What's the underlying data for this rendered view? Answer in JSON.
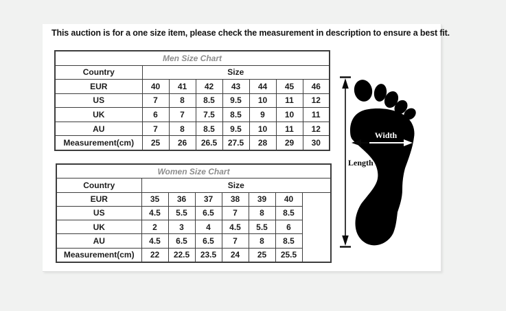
{
  "page": {
    "background_color": "#f1f2f1",
    "panel_color": "#ffffff"
  },
  "header": {
    "notice": "This auction is for a one size item, please check the measurement in description to ensure a best fit."
  },
  "men_chart": {
    "title": "Men Size Chart",
    "country_label": "Country",
    "size_label": "Size",
    "trailing_empty_column": false,
    "rows": [
      {
        "label": "EUR",
        "values": [
          "40",
          "41",
          "42",
          "43",
          "44",
          "45",
          "46"
        ]
      },
      {
        "label": "US",
        "values": [
          "7",
          "8",
          "8.5",
          "9.5",
          "10",
          "11",
          "12"
        ]
      },
      {
        "label": "UK",
        "values": [
          "6",
          "7",
          "7.5",
          "8.5",
          "9",
          "10",
          "11"
        ]
      },
      {
        "label": "AU",
        "values": [
          "7",
          "8",
          "8.5",
          "9.5",
          "10",
          "11",
          "12"
        ]
      },
      {
        "label": "Measurement(cm)",
        "values": [
          "25",
          "26",
          "26.5",
          "27.5",
          "28",
          "29",
          "30"
        ]
      }
    ]
  },
  "women_chart": {
    "title": "Women Size Chart",
    "country_label": "Country",
    "size_label": "Size",
    "trailing_empty_column": true,
    "rows": [
      {
        "label": "EUR",
        "values": [
          "35",
          "36",
          "37",
          "38",
          "39",
          "40"
        ]
      },
      {
        "label": "US",
        "values": [
          "4.5",
          "5.5",
          "6.5",
          "7",
          "8",
          "8.5"
        ]
      },
      {
        "label": "UK",
        "values": [
          "2",
          "3",
          "4",
          "4.5",
          "5.5",
          "6"
        ]
      },
      {
        "label": "AU",
        "values": [
          "4.5",
          "6.5",
          "6.5",
          "7",
          "8",
          "8.5"
        ]
      },
      {
        "label": "Measurement(cm)",
        "values": [
          "22",
          "22.5",
          "23.5",
          "24",
          "25",
          "25.5"
        ]
      }
    ]
  },
  "foot_diagram": {
    "width_label": "Width",
    "length_label": "Length",
    "foot_color": "#000000"
  }
}
